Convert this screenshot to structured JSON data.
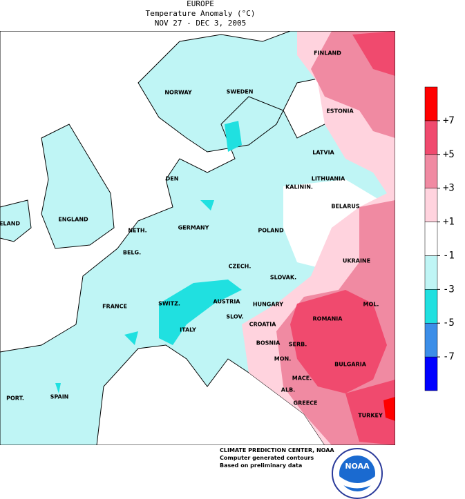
{
  "header": {
    "title": "EUROPE",
    "subtitle": "Temperature Anomaly (°C)",
    "dates": "NOV 27 - DEC  3, 2005"
  },
  "map": {
    "countries": [
      "NORWAY",
      "SWEDEN",
      "FINLAND",
      "ESTONIA",
      "LATVIA",
      "LITHUANIA",
      "DEN",
      "KALININ.",
      "BELARUS",
      "ELAND",
      "ENGLAND",
      "NETH.",
      "GERMANY",
      "POLAND",
      "BELG.",
      "CZECH.",
      "UKRAINE",
      "SLOVAK.",
      "FRANCE",
      "SWITZ.",
      "AUSTRIA",
      "HUNGARY",
      "MOL.",
      "ROMANIA",
      "SLOV.",
      "CROATIA",
      "ITALY",
      "BOSNIA",
      "SERB.",
      "BULGARIA",
      "MON.",
      "MACE.",
      "ALB.",
      "PORT.",
      "SPAIN",
      "GREECE",
      "TURKEY"
    ]
  },
  "legend": {
    "colors": [
      "#0000ff",
      "#3c8ee8",
      "#20e0e0",
      "#bff5f5",
      "#ffffff",
      "#ffd3de",
      "#f08aa2",
      "#f04a6e",
      "#ff0000"
    ],
    "ticks": [
      -7,
      -5,
      -3,
      -1,
      {
        "value": 1,
        "label": "+1"
      },
      {
        "value": 3,
        "label": "+3"
      },
      {
        "value": 5,
        "label": "+5"
      },
      {
        "value": 7,
        "label": "+7"
      }
    ]
  },
  "credits": {
    "lines": [
      "CLIMATE PREDICTION CENTER, NOAA",
      "Computer generated contours",
      "Based on preliminary data"
    ],
    "logo_text": "NOAA"
  }
}
